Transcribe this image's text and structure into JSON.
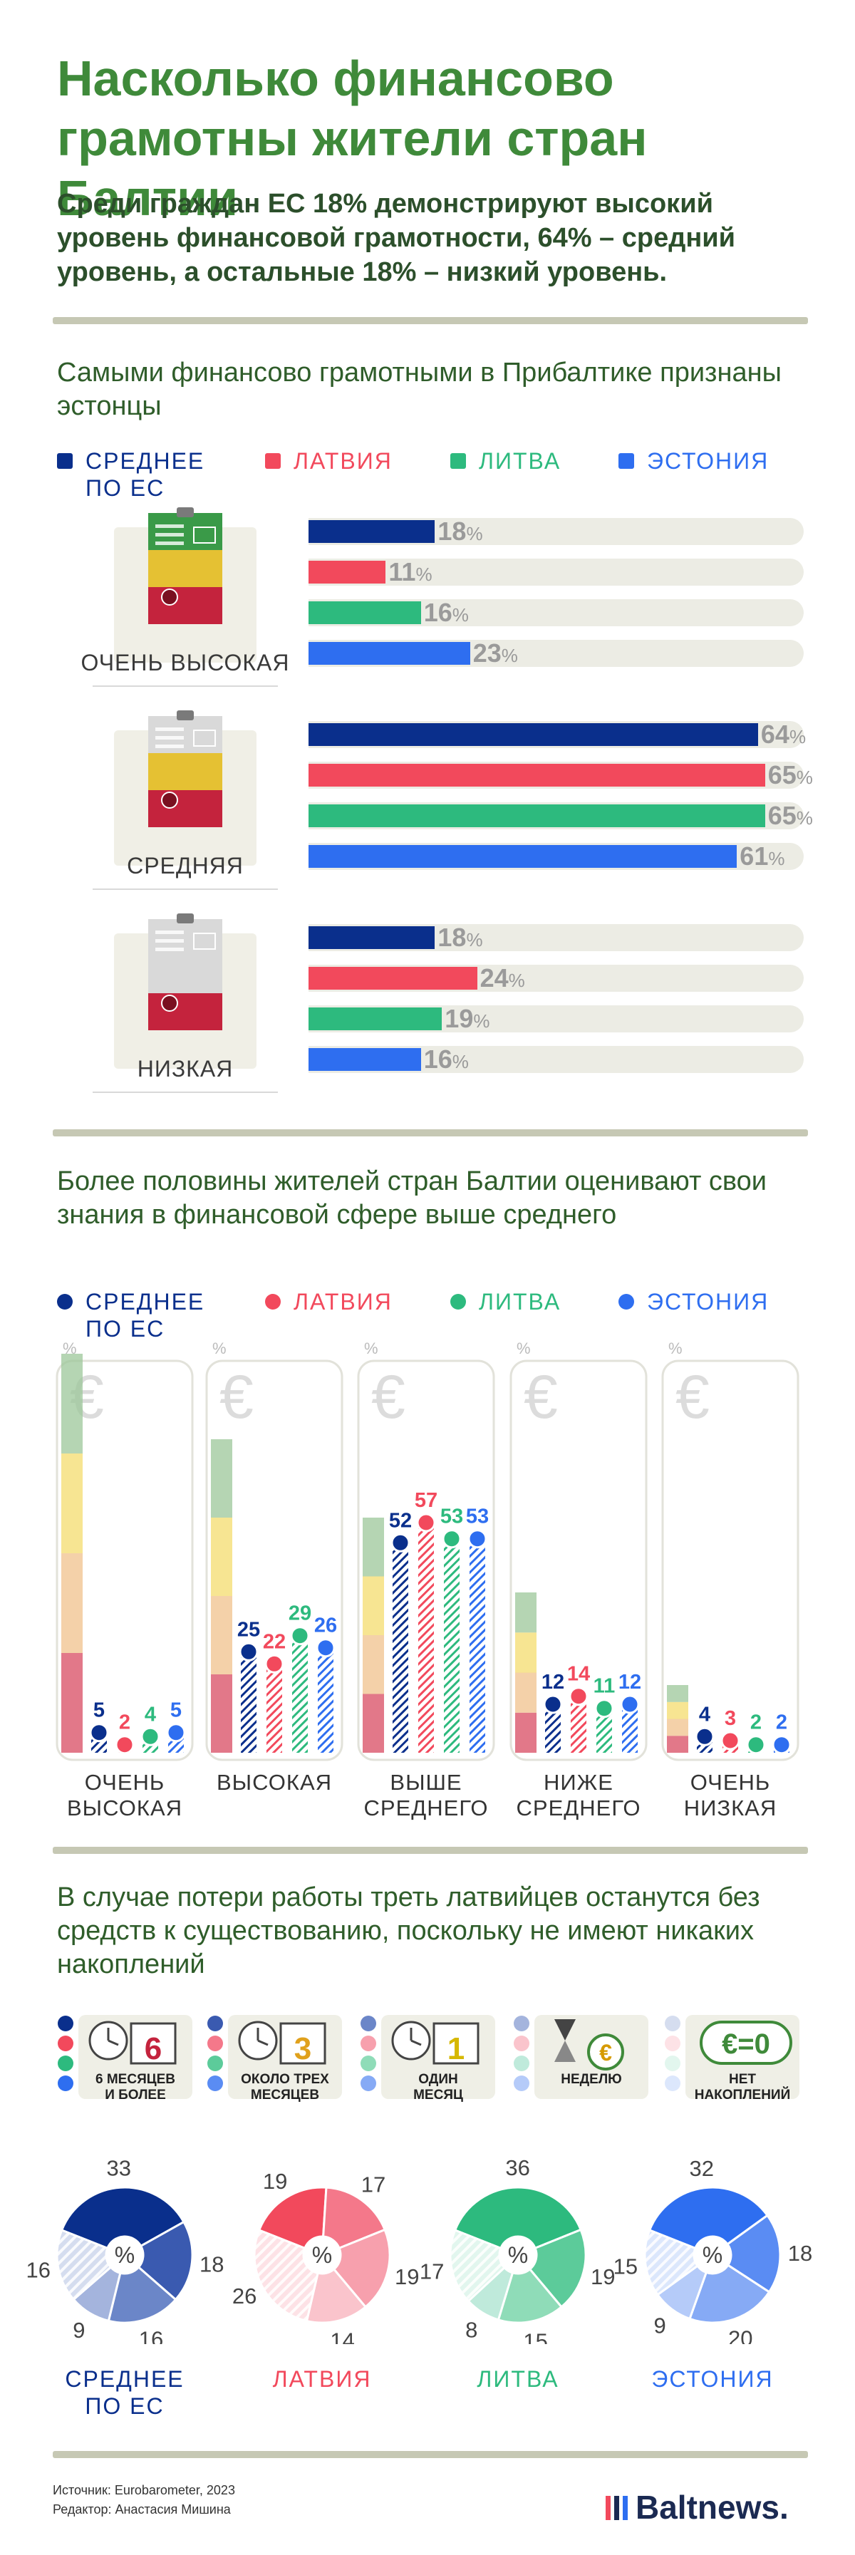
{
  "title_line1": "Насколько финансово",
  "title_line2": "грамотны жители стран Балтии",
  "subtitle": "Среди граждан ЕС 18% демонстрируют высокий уровень финансовой грамотности, 64% – средний уровень, а остальные 18% – низкий уровень.",
  "colors": {
    "eu": "#0a2f8c",
    "lv": "#f2495c",
    "lt": "#2dba7e",
    "ee": "#2e6ef0",
    "green_title": "#3f8a3a"
  },
  "legend": {
    "eu": "СРЕДНЕЕ ПО ЕС",
    "lv": "ЛАТВИЯ",
    "lt": "ЛИТВА",
    "ee": "ЭСТОНИЯ"
  },
  "section1": {
    "heading": "Самыми финансово грамотными в Прибалтике признаны эстонцы",
    "percent": "%",
    "levels": [
      {
        "label": "ОЧЕНЬ ВЫСОКАЯ",
        "values": [
          "18",
          "11",
          "16",
          "23"
        ]
      },
      {
        "label": "СРЕДНЯЯ",
        "values": [
          "64",
          "65",
          "65",
          "61"
        ]
      },
      {
        "label": "НИЗКАЯ",
        "values": [
          "18",
          "24",
          "19",
          "16"
        ]
      }
    ]
  },
  "section2": {
    "heading": "Более половины жителей стран Балтии оценивают свои знания в финансовой сфере выше среднего",
    "percent_symbol": "%",
    "euro_symbol": "€",
    "groups": [
      {
        "label_l1": "ОЧЕНЬ",
        "label_l2": "ВЫСОКАЯ",
        "values": [
          "5",
          "2",
          "4",
          "5"
        ]
      },
      {
        "label_l1": "ВЫСОКАЯ",
        "label_l2": "",
        "values": [
          "25",
          "22",
          "29",
          "26"
        ]
      },
      {
        "label_l1": "ВЫШЕ",
        "label_l2": "СРЕДНЕГО",
        "values": [
          "52",
          "57",
          "53",
          "53"
        ]
      },
      {
        "label_l1": "НИЖЕ",
        "label_l2": "СРЕДНЕГО",
        "values": [
          "12",
          "14",
          "11",
          "12"
        ]
      },
      {
        "label_l1": "ОЧЕНЬ",
        "label_l2": "НИЗКАЯ",
        "values": [
          "4",
          "3",
          "2",
          "2"
        ]
      }
    ]
  },
  "section3": {
    "heading": "В случае потери работы треть латвийцев останутся без средств к существованию, поскольку не имеют никаких накоплений",
    "categories": [
      {
        "icon": "6",
        "l1": "6 МЕСЯЦЕВ",
        "l2": "И БОЛЕЕ"
      },
      {
        "icon": "3",
        "l1": "ОКОЛО ТРЕХ",
        "l2": "МЕСЯЦЕВ"
      },
      {
        "icon": "1",
        "l1": "ОДИН",
        "l2": "МЕСЯЦ"
      },
      {
        "icon": "€",
        "l1": "НЕДЕЛЮ",
        "l2": ""
      },
      {
        "icon": "€=0",
        "l1": "НЕТ",
        "l2": "НАКОПЛЕНИЙ"
      }
    ],
    "pie_center": "%",
    "pies": [
      {
        "name_l1": "СРЕДНЕЕ",
        "name_l2": "ПО ЕС"
      },
      {
        "name_l1": "ЛАТВИЯ",
        "name_l2": ""
      },
      {
        "name_l1": "ЛИТВА",
        "name_l2": ""
      },
      {
        "name_l1": "ЭСТОНИЯ",
        "name_l2": ""
      }
    ]
  },
  "footer": {
    "source": "Источник: Eurobarometer, 2023",
    "editor": "Редактор: Анастасия Мишина",
    "brand": "Baltnews."
  },
  "chart_data": [
    {
      "type": "bar",
      "title": "Самыми финансово грамотными в Прибалтике признаны эстонцы",
      "orientation": "horizontal",
      "categories": [
        "ОЧЕНЬ ВЫСОКАЯ",
        "СРЕДНЯЯ",
        "НИЗКАЯ"
      ],
      "series": [
        {
          "name": "СРЕДНЕЕ ПО ЕС",
          "values": [
            18,
            64,
            18
          ]
        },
        {
          "name": "ЛАТВИЯ",
          "values": [
            11,
            65,
            24
          ]
        },
        {
          "name": "ЛИТВА",
          "values": [
            16,
            65,
            19
          ]
        },
        {
          "name": "ЭСТОНИЯ",
          "values": [
            23,
            61,
            16
          ]
        }
      ],
      "unit": "%",
      "xlim": [
        0,
        70
      ],
      "legend": "top"
    },
    {
      "type": "bar",
      "title": "Более половины жителей стран Балтии оценивают свои знания в финансовой сфере выше среднего",
      "orientation": "vertical",
      "categories": [
        "ОЧЕНЬ ВЫСОКАЯ",
        "ВЫСОКАЯ",
        "ВЫШЕ СРЕДНЕГО",
        "НИЖЕ СРЕДНЕГО",
        "ОЧЕНЬ НИЗКАЯ"
      ],
      "series": [
        {
          "name": "СРЕДНЕЕ ПО ЕС",
          "values": [
            5,
            25,
            52,
            12,
            4
          ]
        },
        {
          "name": "ЛАТВИЯ",
          "values": [
            2,
            22,
            57,
            14,
            3
          ]
        },
        {
          "name": "ЛИТВА",
          "values": [
            4,
            29,
            53,
            11,
            2
          ]
        },
        {
          "name": "ЭСТОНИЯ",
          "values": [
            5,
            26,
            53,
            12,
            2
          ]
        }
      ],
      "unit": "%",
      "ylim": [
        0,
        60
      ],
      "legend": "top"
    },
    {
      "type": "pie",
      "title": "В случае потери работы треть латвийцев останутся без средств к существованию, поскольку не имеют никаких накоплений",
      "categories": [
        "6 МЕСЯЦЕВ И БОЛЕЕ",
        "ОКОЛО ТРЕХ МЕСЯЦЕВ",
        "ОДИН МЕСЯЦ",
        "НЕДЕЛЮ",
        "НЕТ НАКОПЛЕНИЙ"
      ],
      "series": [
        {
          "name": "СРЕДНЕЕ ПО ЕС",
          "values": [
            33,
            18,
            16,
            9,
            16
          ]
        },
        {
          "name": "ЛАТВИЯ",
          "values": [
            19,
            17,
            19,
            14,
            26
          ]
        },
        {
          "name": "ЛИТВА",
          "values": [
            36,
            19,
            15,
            8,
            17
          ]
        },
        {
          "name": "ЭСТОНИЯ",
          "values": [
            32,
            18,
            20,
            9,
            15
          ]
        }
      ],
      "unit": "%"
    }
  ]
}
